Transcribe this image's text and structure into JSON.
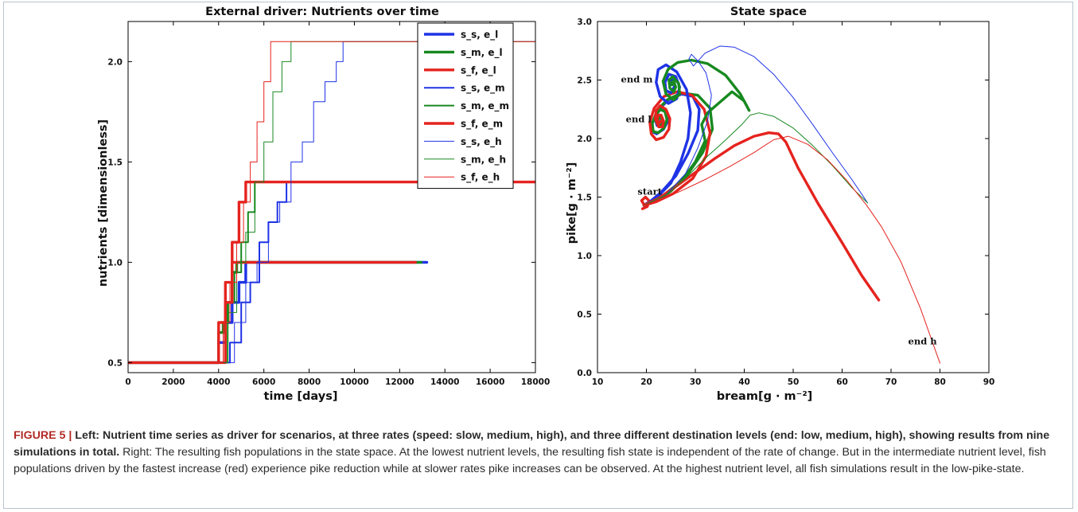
{
  "caption": {
    "label": "FIGURE 5",
    "separator": " | ",
    "bold_text": "Left: Nutrient time series as driver for scenarios, at three rates (speed: slow, medium, high), and three different destination levels (end: low, medium, high), showing results from nine simulations in total.",
    "text": " Right: The resulting fish populations in the state space. At the lowest nutrient levels, the resulting fish state is independent of the rate of change. But in the intermediate nutrient level, fish populations driven by the fastest increase (red) experience pike reduction while at slower rates pike increases can be observed. At the highest nutrient level, all fish simulations result in the low-pike-state."
  },
  "colors": {
    "blue": "#1f33e6",
    "green": "#17891f",
    "red": "#e5231e"
  },
  "chart_data": [
    {
      "type": "line",
      "title": "External driver: Nutrients over time",
      "xlabel": "time [days]",
      "ylabel": "nutrients [dimensionless]",
      "xlim": [
        0,
        18000
      ],
      "ylim": [
        0.45,
        2.2
      ],
      "xticks": [
        0,
        2000,
        4000,
        6000,
        8000,
        10000,
        12000,
        14000,
        16000,
        18000
      ],
      "yticks": [
        0.5,
        1.0,
        1.5,
        2.0
      ],
      "xtick_labels": [
        "0",
        "2000",
        "4000",
        "6000",
        "8000",
        "10000",
        "12000",
        "14000",
        "16000",
        "18000"
      ],
      "ytick_labels": [
        "0.5",
        "1.0",
        "1.5",
        "2.0"
      ],
      "legend_position": "top-right",
      "series": [
        {
          "name": "s_s, e_l",
          "color": "#1f33e6",
          "width": "thick",
          "x": [
            0,
            4000,
            4000,
            4300,
            4300,
            4600,
            4600,
            4900,
            4900,
            5200,
            5200,
            5500,
            5500,
            13200
          ],
          "y": [
            0.5,
            0.5,
            0.6,
            0.6,
            0.7,
            0.7,
            0.8,
            0.8,
            0.9,
            0.9,
            1.0,
            1.0,
            1.0,
            1.0
          ]
        },
        {
          "name": "s_m, e_l",
          "color": "#17891f",
          "width": "thick",
          "x": [
            0,
            4000,
            4000,
            4200,
            4200,
            4400,
            4400,
            4600,
            4600,
            4800,
            4800,
            12950
          ],
          "y": [
            0.5,
            0.5,
            0.65,
            0.65,
            0.7,
            0.7,
            0.8,
            0.8,
            0.95,
            0.95,
            1.0,
            1.0
          ]
        },
        {
          "name": "s_f, e_l",
          "color": "#e5231e",
          "width": "thick",
          "x": [
            0,
            4000,
            4000,
            4300,
            4300,
            4600,
            4600,
            12700
          ],
          "y": [
            0.5,
            0.5,
            0.7,
            0.7,
            0.9,
            0.9,
            1.0,
            1.0
          ]
        },
        {
          "name": "s_s, e_m",
          "color": "#1f33e6",
          "width": "medium",
          "x": [
            4000,
            4500,
            4500,
            5000,
            5000,
            5400,
            5400,
            5800,
            5800,
            6200,
            6200,
            6600,
            6600,
            7000,
            7000,
            18000
          ],
          "y": [
            0.5,
            0.5,
            0.6,
            0.6,
            0.8,
            0.8,
            0.9,
            0.9,
            1.1,
            1.1,
            1.2,
            1.2,
            1.3,
            1.3,
            1.4,
            1.4
          ]
        },
        {
          "name": "s_m, e_m",
          "color": "#17891f",
          "width": "medium",
          "x": [
            4000,
            4400,
            4400,
            4700,
            4700,
            5000,
            5000,
            5300,
            5300,
            5600,
            5600,
            18000
          ],
          "y": [
            0.5,
            0.5,
            0.8,
            0.8,
            0.95,
            0.95,
            1.1,
            1.1,
            1.25,
            1.25,
            1.4,
            1.4
          ]
        },
        {
          "name": "s_f, e_m",
          "color": "#e5231e",
          "width": "thick",
          "x": [
            4000,
            4300,
            4300,
            4600,
            4600,
            4900,
            4900,
            5200,
            5200,
            5500,
            5500,
            18000
          ],
          "y": [
            0.5,
            0.5,
            0.8,
            0.8,
            1.1,
            1.1,
            1.3,
            1.3,
            1.4,
            1.4,
            1.4,
            1.4
          ]
        },
        {
          "name": "s_s, e_h",
          "color": "#1f33e6",
          "width": "thin",
          "x": [
            4000,
            4700,
            4700,
            5200,
            5200,
            5700,
            5700,
            6200,
            6200,
            6700,
            6700,
            7200,
            7200,
            7700,
            7700,
            8200,
            8200,
            8700,
            8700,
            9200,
            9200,
            9500,
            9500,
            18000
          ],
          "y": [
            0.5,
            0.5,
            0.7,
            0.7,
            0.9,
            0.9,
            1.0,
            1.0,
            1.2,
            1.2,
            1.3,
            1.3,
            1.5,
            1.5,
            1.6,
            1.6,
            1.8,
            1.8,
            1.9,
            1.9,
            2.0,
            2.0,
            2.1,
            2.1
          ]
        },
        {
          "name": "s_m, e_h",
          "color": "#17891f",
          "width": "thin",
          "x": [
            4000,
            4400,
            4400,
            4800,
            4800,
            5200,
            5200,
            5600,
            5600,
            6000,
            6000,
            6400,
            6400,
            6800,
            6800,
            7200,
            7200,
            7600,
            7600,
            18000
          ],
          "y": [
            0.5,
            0.5,
            0.75,
            0.75,
            1.0,
            1.0,
            1.15,
            1.15,
            1.4,
            1.4,
            1.6,
            1.6,
            1.85,
            1.85,
            2.0,
            2.0,
            2.1,
            2.1,
            2.1,
            2.1
          ]
        },
        {
          "name": "s_f, e_h",
          "color": "#e5231e",
          "width": "thin",
          "x": [
            4000,
            4200,
            4200,
            4500,
            4500,
            4800,
            4800,
            5100,
            5100,
            5400,
            5400,
            5700,
            5700,
            6000,
            6000,
            6300,
            6300,
            6600,
            6600,
            18000
          ],
          "y": [
            0.5,
            0.5,
            0.7,
            0.7,
            0.9,
            0.9,
            1.1,
            1.1,
            1.3,
            1.3,
            1.5,
            1.5,
            1.7,
            1.7,
            1.9,
            1.9,
            2.1,
            2.1,
            2.1,
            2.1
          ]
        }
      ]
    },
    {
      "type": "line",
      "title": "State space",
      "xlabel": "bream[g · m⁻²]",
      "ylabel": "pike[g · m⁻²]",
      "xlim": [
        10,
        90
      ],
      "ylim": [
        0.0,
        3.0
      ],
      "xticks": [
        10,
        20,
        30,
        40,
        50,
        60,
        70,
        80,
        90
      ],
      "yticks": [
        0.0,
        0.5,
        1.0,
        1.5,
        2.0,
        2.5,
        3.0
      ],
      "xtick_labels": [
        "10",
        "20",
        "30",
        "40",
        "50",
        "60",
        "70",
        "80",
        "90"
      ],
      "ytick_labels": [
        "0.0",
        "0.5",
        "1.0",
        "1.5",
        "2.0",
        "2.5",
        "3.0"
      ],
      "annotations": [
        {
          "text": "start",
          "x": 18.2,
          "y": 1.52
        },
        {
          "text": "end l",
          "x": 15.8,
          "y": 2.14
        },
        {
          "text": "end m",
          "x": 14.8,
          "y": 2.48
        },
        {
          "text": "end h",
          "x": 73.5,
          "y": 0.24
        }
      ],
      "series": [
        {
          "name": "s_s, e_l",
          "color": "#1f33e6",
          "width": "thick",
          "x": [
            19.5,
            21,
            23,
            26,
            28.5,
            30.5,
            30.8,
            29.5,
            27.2,
            24.5,
            22.3,
            21.2,
            21.2,
            22.1,
            23.5,
            24.4,
            24.2,
            23.2,
            22.2,
            21.8,
            22.2,
            23.0,
            23.4,
            23.0,
            22.4,
            22.3,
            22.6
          ],
          "y": [
            1.43,
            1.47,
            1.54,
            1.68,
            1.87,
            2.07,
            2.25,
            2.36,
            2.38,
            2.33,
            2.24,
            2.13,
            2.06,
            2.04,
            2.08,
            2.15,
            2.22,
            2.26,
            2.22,
            2.16,
            2.11,
            2.11,
            2.15,
            2.19,
            2.19,
            2.16,
            2.15
          ]
        },
        {
          "name": "s_m, e_l",
          "color": "#17891f",
          "width": "thick",
          "x": [
            19.5,
            22,
            25,
            28.5,
            31.5,
            33.5,
            33.0,
            30.5,
            27.2,
            24.2,
            22.2,
            21.2,
            21.4,
            22.4,
            23.6,
            24.2,
            23.8,
            22.8,
            22.0,
            22.0,
            22.6,
            23.2,
            23.1,
            22.6,
            22.4
          ],
          "y": [
            1.43,
            1.47,
            1.55,
            1.7,
            1.88,
            2.08,
            2.26,
            2.37,
            2.39,
            2.33,
            2.24,
            2.13,
            2.06,
            2.05,
            2.09,
            2.16,
            2.23,
            2.25,
            2.2,
            2.14,
            2.11,
            2.13,
            2.17,
            2.18,
            2.16
          ]
        },
        {
          "name": "s_f, e_l",
          "color": "#e5231e",
          "width": "thick",
          "x": [
            19.2,
            20.2,
            20.5,
            19.8,
            19.0,
            19.6,
            22,
            25.5,
            29.5,
            32.2,
            33.0,
            31.8,
            29.3,
            26.3,
            23.6,
            21.6,
            20.7,
            21.0,
            22.0,
            23.5,
            24.6,
            24.8,
            24.0,
            22.8,
            22.0,
            21.8,
            22.5,
            23.3,
            23.5,
            23.0,
            22.4,
            22.2,
            22.6,
            23.0
          ],
          "y": [
            1.4,
            1.42,
            1.47,
            1.5,
            1.47,
            1.43,
            1.46,
            1.53,
            1.66,
            1.85,
            2.05,
            2.25,
            2.37,
            2.4,
            2.36,
            2.26,
            2.14,
            2.04,
            1.99,
            2.01,
            2.08,
            2.17,
            2.25,
            2.28,
            2.24,
            2.17,
            2.1,
            2.1,
            2.15,
            2.2,
            2.2,
            2.16,
            2.13,
            2.15
          ]
        },
        {
          "name": "s_s, e_m",
          "color": "#1f33e6",
          "width": "thick",
          "x": [
            19.5,
            22,
            25,
            27,
            28.5,
            29.0,
            28.2,
            26.2,
            24.0,
            22.4,
            22.0,
            22.8,
            24.5,
            26.2,
            26.8,
            26.0,
            24.6,
            23.8,
            24.0,
            25.0,
            25.8,
            25.6,
            24.9,
            24.7,
            25.1
          ],
          "y": [
            1.43,
            1.49,
            1.62,
            1.8,
            2.0,
            2.22,
            2.42,
            2.57,
            2.63,
            2.59,
            2.48,
            2.36,
            2.3,
            2.34,
            2.44,
            2.53,
            2.55,
            2.48,
            2.41,
            2.39,
            2.45,
            2.5,
            2.5,
            2.47,
            2.46
          ]
        },
        {
          "name": "s_m, e_m",
          "color": "#17891f",
          "width": "thick",
          "x": [
            19.5,
            23,
            27,
            30,
            32,
            31.3,
            32.5,
            35,
            37.5,
            40.0,
            41.0,
            39.2,
            36.2,
            32.5,
            29.2,
            26.4,
            24.4,
            23.4,
            24.0,
            25.6,
            26.8,
            26.6,
            25.4,
            24.6,
            24.8,
            25.6,
            26.0,
            25.6,
            25.2,
            25.3
          ],
          "y": [
            1.43,
            1.5,
            1.63,
            1.8,
            1.98,
            2.12,
            2.22,
            2.31,
            2.4,
            2.32,
            2.24,
            2.38,
            2.54,
            2.64,
            2.67,
            2.65,
            2.59,
            2.49,
            2.38,
            2.33,
            2.38,
            2.47,
            2.53,
            2.5,
            2.43,
            2.4,
            2.44,
            2.49,
            2.48,
            2.46
          ]
        },
        {
          "name": "s_f, e_m",
          "color": "#e5231e",
          "width": "thick",
          "x": [
            19.5,
            22.5,
            26,
            30,
            34,
            38,
            42,
            45,
            47,
            48.5,
            51,
            55,
            60,
            64,
            67.5
          ],
          "y": [
            1.43,
            1.49,
            1.59,
            1.71,
            1.83,
            1.94,
            2.02,
            2.05,
            2.04,
            1.97,
            1.75,
            1.45,
            1.11,
            0.83,
            0.62
          ]
        },
        {
          "name": "s_s, e_h",
          "color": "#1f33e6",
          "width": "thin",
          "x": [
            19.5,
            24,
            28,
            30.5,
            32.5,
            33.3,
            32.2,
            30.6,
            29.2,
            28.7,
            29.6,
            32,
            35,
            38,
            42,
            46,
            50,
            54,
            58,
            62,
            65.2
          ],
          "y": [
            1.43,
            1.52,
            1.7,
            1.92,
            2.15,
            2.37,
            2.56,
            2.66,
            2.72,
            2.68,
            2.62,
            2.73,
            2.79,
            2.78,
            2.7,
            2.55,
            2.35,
            2.12,
            1.88,
            1.65,
            1.45
          ]
        },
        {
          "name": "s_m, e_h",
          "color": "#17891f",
          "width": "thin",
          "x": [
            19.5,
            24,
            28,
            32,
            36,
            39.5,
            41.2,
            43,
            46,
            50,
            54,
            58,
            62,
            65.2
          ],
          "y": [
            1.43,
            1.52,
            1.66,
            1.83,
            1.98,
            2.12,
            2.2,
            2.22,
            2.19,
            2.09,
            1.94,
            1.77,
            1.58,
            1.45
          ]
        },
        {
          "name": "s_f, e_h",
          "color": "#e5231e",
          "width": "thin",
          "x": [
            19.5,
            23,
            27,
            32,
            37,
            42,
            46,
            49,
            53,
            57,
            61,
            65,
            68,
            72,
            76,
            80
          ],
          "y": [
            1.43,
            1.48,
            1.55,
            1.65,
            1.76,
            1.88,
            1.99,
            2.02,
            1.95,
            1.82,
            1.64,
            1.43,
            1.25,
            0.95,
            0.55,
            0.08
          ]
        }
      ]
    }
  ]
}
